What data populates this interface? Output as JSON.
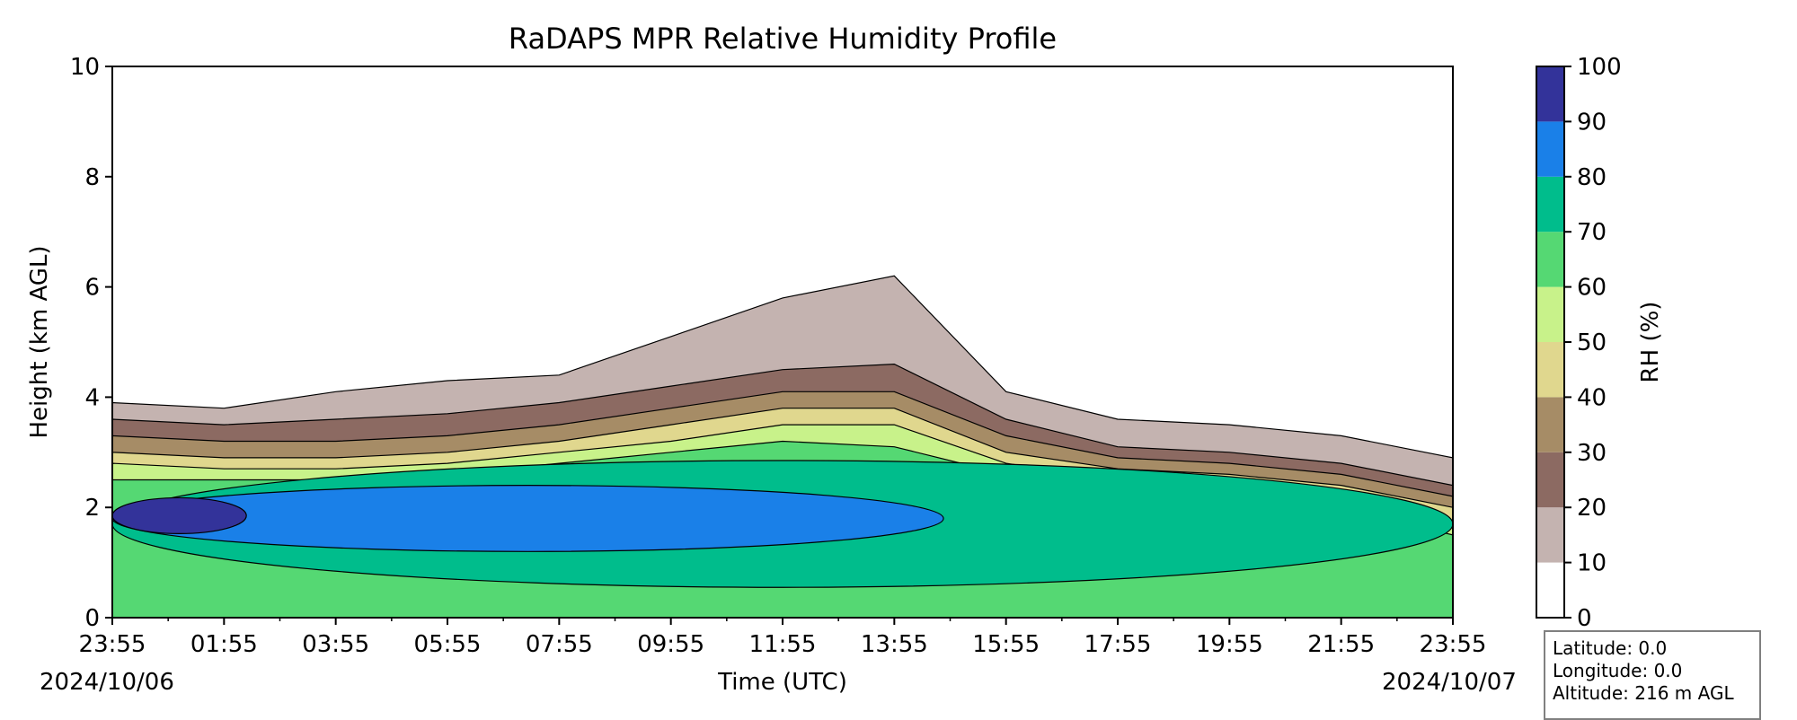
{
  "chart_data": {
    "type": "contour",
    "title": "RaDAPS MPR Relative Humidity Profile",
    "xlabel": "Time (UTC)",
    "ylabel": "Height (km AGL)",
    "start_date": "2024/10/06",
    "end_date": "2024/10/07",
    "x_tick_labels": [
      "23:55",
      "01:55",
      "03:55",
      "05:55",
      "07:55",
      "09:55",
      "11:55",
      "13:55",
      "15:55",
      "17:55",
      "19:55",
      "21:55",
      "23:55"
    ],
    "y_ticks": [
      0,
      2,
      4,
      6,
      8,
      10
    ],
    "ylim": [
      0,
      10
    ],
    "colorbar": {
      "label": "RH (%)",
      "ticks": [
        0,
        10,
        20,
        30,
        40,
        50,
        60,
        70,
        80,
        90,
        100
      ],
      "colors": [
        "#ffffff",
        "#c4b3b0",
        "#8c6a62",
        "#a68c66",
        "#e0d78e",
        "#c8f28a",
        "#55d873",
        "#00bd8c",
        "#1a80e8",
        "#33339a"
      ]
    },
    "series": [
      {
        "name": "10%",
        "values": [
          3.9,
          3.8,
          4.1,
          4.3,
          4.4,
          5.1,
          5.8,
          6.2,
          4.1,
          3.6,
          3.5,
          3.3,
          2.9
        ]
      },
      {
        "name": "20%",
        "values": [
          3.6,
          3.5,
          3.6,
          3.7,
          3.9,
          4.2,
          4.5,
          4.6,
          3.6,
          3.1,
          3.0,
          2.8,
          2.4
        ]
      },
      {
        "name": "30%",
        "values": [
          3.3,
          3.2,
          3.2,
          3.3,
          3.5,
          3.8,
          4.1,
          4.1,
          3.3,
          2.9,
          2.8,
          2.6,
          2.2
        ]
      },
      {
        "name": "40%",
        "values": [
          3.0,
          2.9,
          2.9,
          3.0,
          3.2,
          3.5,
          3.8,
          3.8,
          3.0,
          2.7,
          2.6,
          2.4,
          2.0
        ]
      },
      {
        "name": "50%",
        "values": [
          2.8,
          2.7,
          2.7,
          2.8,
          3.0,
          3.2,
          3.5,
          3.5,
          2.8,
          2.5,
          2.4,
          2.2,
          1.7
        ]
      },
      {
        "name": "60%",
        "values": [
          2.5,
          2.5,
          2.5,
          2.6,
          2.8,
          3.0,
          3.2,
          3.1,
          2.6,
          2.3,
          2.2,
          2.0,
          1.5
        ]
      }
    ],
    "site": {
      "latitude": "Latitude: 0.0",
      "longitude": "Longitude: 0.0",
      "altitude": "Altitude: 216 m AGL"
    }
  }
}
